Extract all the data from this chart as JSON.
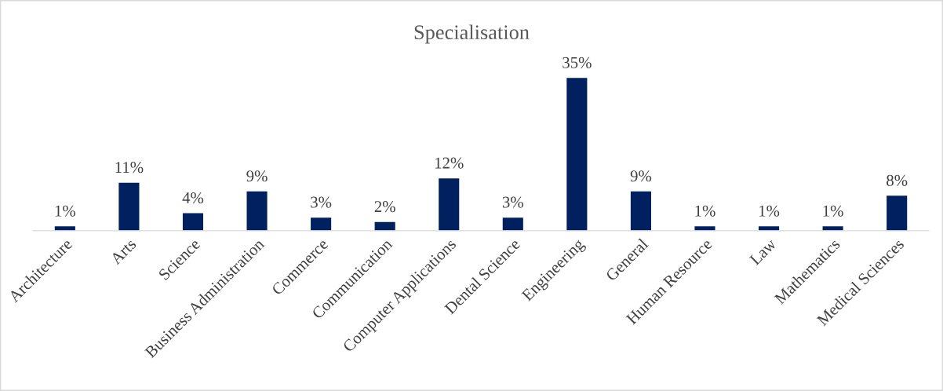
{
  "chart_data": {
    "type": "bar",
    "title": "Specialisation",
    "categories": [
      "Architecture",
      "Arts",
      "Science",
      "Business Administration",
      "Commerce",
      "Communication",
      "Computer Applications",
      "Dental Science",
      "Engineering",
      "General",
      "Human Resource",
      "Law",
      "Mathematics",
      "Medical Sciences"
    ],
    "values": [
      1,
      11,
      4,
      9,
      3,
      2,
      12,
      3,
      35,
      9,
      1,
      1,
      1,
      8
    ],
    "value_labels": [
      "1%",
      "11%",
      "4%",
      "9%",
      "3%",
      "2%",
      "12%",
      "3%",
      "35%",
      "9%",
      "1%",
      "1%",
      "1%",
      "8%"
    ],
    "color": "#002060",
    "grid": false,
    "legend": false
  }
}
